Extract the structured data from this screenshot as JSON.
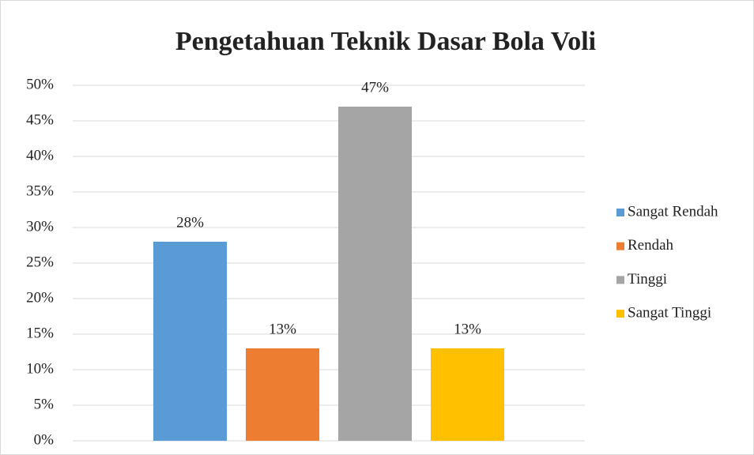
{
  "chart_data": {
    "type": "bar",
    "title": "Pengetahuan Teknik Dasar Bola Voli",
    "categories": [
      null
    ],
    "series": [
      {
        "name": "Sangat Rendah",
        "color": "#5b9bd5",
        "values": [
          28
        ],
        "value_labels": [
          "28%"
        ]
      },
      {
        "name": "Rendah",
        "color": "#ed7d31",
        "values": [
          13
        ],
        "value_labels": [
          "13%"
        ]
      },
      {
        "name": "Tinggi",
        "color": "#a5a5a5",
        "values": [
          47
        ],
        "value_labels": [
          "47%"
        ]
      },
      {
        "name": "Sangat Tinggi",
        "color": "#ffc000",
        "values": [
          13
        ],
        "value_labels": [
          "13%"
        ]
      }
    ],
    "ylim": [
      0,
      50
    ],
    "yticks": [
      {
        "value": 0,
        "label": "0%"
      },
      {
        "value": 5,
        "label": "5%"
      },
      {
        "value": 10,
        "label": "10%"
      },
      {
        "value": 15,
        "label": "15%"
      },
      {
        "value": 20,
        "label": "20%"
      },
      {
        "value": 25,
        "label": "25%"
      },
      {
        "value": 30,
        "label": "30%"
      },
      {
        "value": 35,
        "label": "35%"
      },
      {
        "value": 40,
        "label": "40%"
      },
      {
        "value": 45,
        "label": "45%"
      },
      {
        "value": 50,
        "label": "50%"
      }
    ],
    "grid": true,
    "legend": "right"
  }
}
